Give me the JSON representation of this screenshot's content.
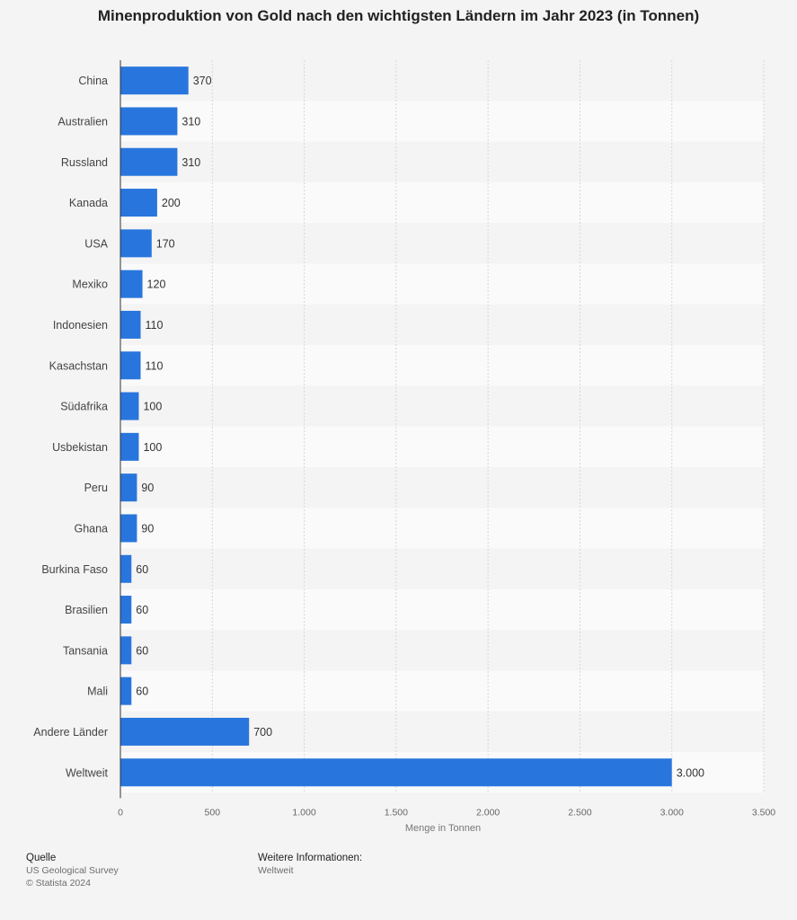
{
  "chart_data": {
    "type": "bar",
    "orientation": "horizontal",
    "title": "Minenproduktion von Gold nach den wichtigsten Ländern im Jahr 2023 (in Tonnen)",
    "xlabel": "Menge in Tonnen",
    "ylabel": "",
    "categories": [
      "China",
      "Australien",
      "Russland",
      "Kanada",
      "USA",
      "Mexiko",
      "Indonesien",
      "Kasachstan",
      "Südafrika",
      "Usbekistan",
      "Peru",
      "Ghana",
      "Burkina Faso",
      "Brasilien",
      "Tansania",
      "Mali",
      "Andere Länder",
      "Weltweit"
    ],
    "values": [
      370,
      310,
      310,
      200,
      170,
      120,
      110,
      110,
      100,
      100,
      90,
      90,
      60,
      60,
      60,
      60,
      700,
      3000
    ],
    "value_labels": [
      "370",
      "310",
      "310",
      "200",
      "170",
      "120",
      "110",
      "110",
      "100",
      "100",
      "90",
      "90",
      "60",
      "60",
      "60",
      "60",
      "700",
      "3.000"
    ],
    "xlim": [
      0,
      3500
    ],
    "ticks": [
      0,
      500,
      1000,
      1500,
      2000,
      2500,
      3000,
      3500
    ],
    "tick_labels": [
      "0",
      "500",
      "1.000",
      "1.500",
      "2.000",
      "2.500",
      "3.000",
      "3.500"
    ],
    "grid": true,
    "bar_color": "#2876dd"
  },
  "footer": {
    "source_heading": "Quelle",
    "source_name": "US Geological Survey",
    "copyright": "© Statista 2024",
    "info_heading": "Weitere Informationen:",
    "info_value": "Weltweit"
  }
}
